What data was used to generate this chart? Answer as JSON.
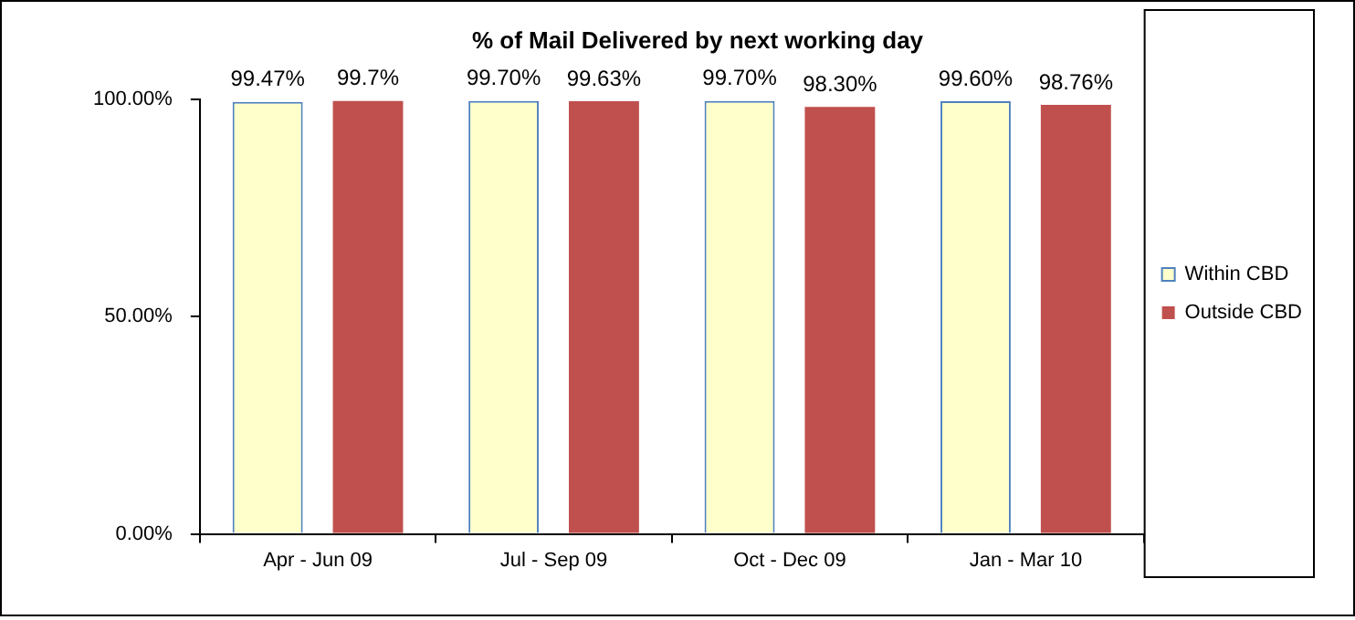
{
  "chart_data": {
    "type": "bar",
    "title": "% of Mail Delivered by next working day",
    "categories": [
      "Apr - Jun 09",
      "Jul - Sep 09",
      "Oct - Dec 09",
      "Jan - Mar 10"
    ],
    "series": [
      {
        "name": "Within CBD",
        "color": "#ffffcc",
        "values": [
          99.47,
          99.7,
          99.7,
          99.6
        ],
        "value_labels": [
          "99.47%",
          "99.70%",
          "99.70%",
          "99.60%"
        ]
      },
      {
        "name": "Outside CBD",
        "color": "#c0504d",
        "values": [
          99.7,
          99.63,
          98.3,
          98.76
        ],
        "value_labels": [
          "99.7%",
          "99.63%",
          "98.30%",
          "98.76%"
        ]
      }
    ],
    "ylim": [
      0,
      100
    ],
    "yticks": [
      {
        "value": 0,
        "label": "0.00%"
      },
      {
        "value": 50,
        "label": "50.00%"
      },
      {
        "value": 100,
        "label": "100.00%"
      }
    ],
    "grid": false,
    "legend": "right"
  }
}
